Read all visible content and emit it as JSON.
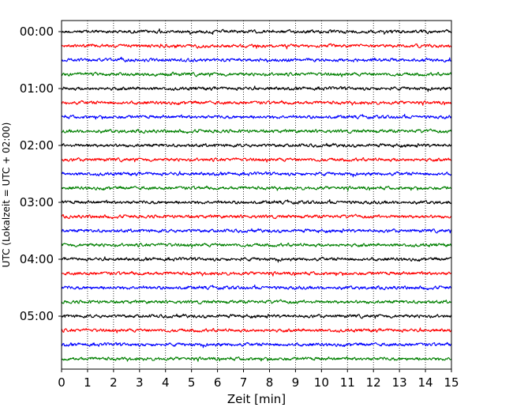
{
  "chart_data": {
    "type": "line",
    "title": "",
    "xlabel": "Zeit  [min]",
    "ylabel": "UTC (Lokalzeit = UTC + 02:00)",
    "xlim": [
      0,
      15
    ],
    "x_ticks": [
      "0",
      "1",
      "2",
      "3",
      "4",
      "5",
      "6",
      "7",
      "8",
      "9",
      "10",
      "11",
      "12",
      "13",
      "14",
      "15"
    ],
    "y_ticks": [
      "00:00",
      "01:00",
      "02:00",
      "03:00",
      "04:00",
      "05:00"
    ],
    "grid": "vertical dotted",
    "trace_interval_minutes": 15,
    "trace_count": 24,
    "trace_colors": [
      "#000000",
      "#ff0000",
      "#0000ff",
      "#008000"
    ]
  }
}
